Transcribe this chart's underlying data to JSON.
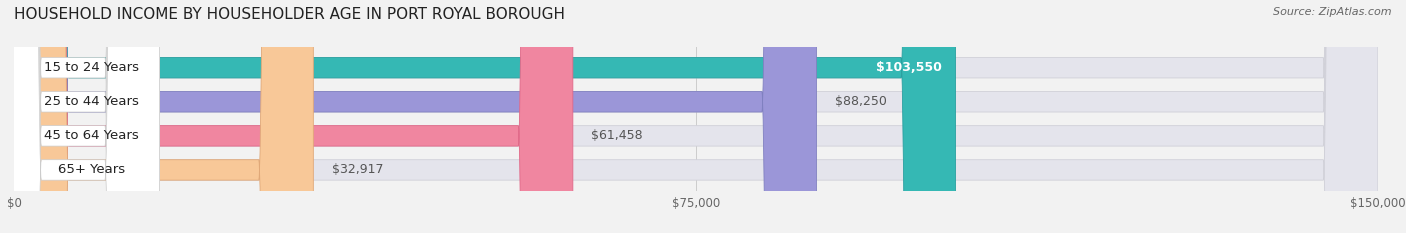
{
  "title": "HOUSEHOLD INCOME BY HOUSEHOLDER AGE IN PORT ROYAL BOROUGH",
  "source": "Source: ZipAtlas.com",
  "categories": [
    "15 to 24 Years",
    "25 to 44 Years",
    "45 to 64 Years",
    "65+ Years"
  ],
  "values": [
    103550,
    88250,
    61458,
    32917
  ],
  "labels": [
    "$103,550",
    "$88,250",
    "$61,458",
    "$32,917"
  ],
  "label_inside": [
    true,
    false,
    false,
    false
  ],
  "bar_colors": [
    "#35b8b4",
    "#9b96d8",
    "#f086a0",
    "#f8c898"
  ],
  "bar_edge_colors": [
    "#2aa0a0",
    "#8080c0",
    "#e06888",
    "#e0a878"
  ],
  "background_color": "#f2f2f2",
  "bar_bg_color": "#e4e4ec",
  "bar_bg_edge_color": "#d0d0d8",
  "label_color_inside": "#ffffff",
  "label_color_outside": "#555555",
  "xlim": [
    0,
    150000
  ],
  "xticks": [
    0,
    75000,
    150000
  ],
  "xticklabels": [
    "$0",
    "$75,000",
    "$150,000"
  ],
  "title_fontsize": 11,
  "source_fontsize": 8,
  "label_fontsize": 9,
  "category_fontsize": 9.5,
  "figsize": [
    14.06,
    2.33
  ],
  "dpi": 100
}
